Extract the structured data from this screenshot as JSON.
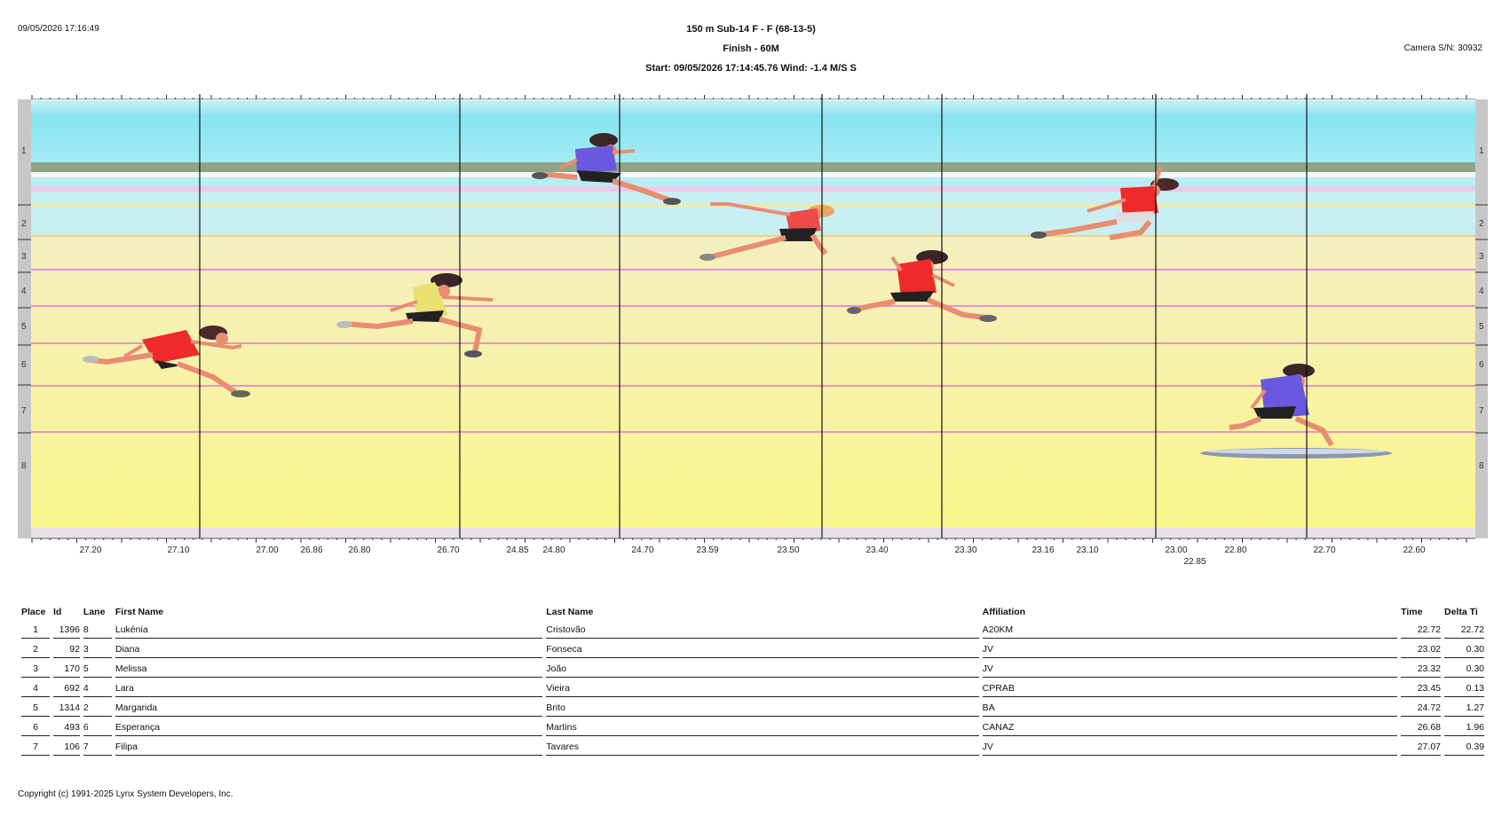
{
  "header": {
    "datetime": "09/05/2026 17:16:49",
    "event": "150 m  Sub-14 F - F (68-13-5)",
    "finish": "Finish - 60M",
    "start": "Start: 09/05/2026 17:14:45.76    Wind: -1.4 M/S S",
    "camera": "Camera S/N: 30932"
  },
  "photo": {
    "lanes": [
      "1",
      "2",
      "3",
      "4",
      "5",
      "6",
      "7",
      "8"
    ],
    "colors": {
      "sky": "#8ee6f2",
      "track_top": "#f4eeb8",
      "track_bottom": "#fbf58a",
      "lane_line": "#e09ad8",
      "grass": "#8fa487",
      "red_kit": "#ee2a2a",
      "blue_kit": "#6a58e0",
      "skin": "#e88d72",
      "hair": "#4a2a2a"
    },
    "time_ticks": [
      {
        "label": "27.20",
        "row": 0
      },
      {
        "label": "27.10",
        "row": 0
      },
      {
        "label": "27.00",
        "row": 0
      },
      {
        "label": "26.86",
        "row": 0
      },
      {
        "label": "26.80",
        "row": 0
      },
      {
        "label": "26.70",
        "row": 0
      },
      {
        "label": "24.85",
        "row": 0
      },
      {
        "label": "24.80",
        "row": 0
      },
      {
        "label": "24.70",
        "row": 0
      },
      {
        "label": "23.59",
        "row": 0
      },
      {
        "label": "23.50",
        "row": 0
      },
      {
        "label": "23.40",
        "row": 0
      },
      {
        "label": "23.30",
        "row": 0
      },
      {
        "label": "23.16",
        "row": 0
      },
      {
        "label": "23.10",
        "row": 0
      },
      {
        "label": "23.00",
        "row": 0
      },
      {
        "label": "22.85",
        "row": 1
      },
      {
        "label": "22.80",
        "row": 0
      },
      {
        "label": "22.70",
        "row": 0
      },
      {
        "label": "22.60",
        "row": 0
      }
    ]
  },
  "table": {
    "headers": {
      "place": "Place",
      "id": "Id",
      "lane": "Lane",
      "first": "First Name",
      "last": "Last Name",
      "affiliation": "Affiliation",
      "time": "Time",
      "delta": "Delta Ti"
    },
    "rows": [
      {
        "place": "1",
        "id": "1396",
        "lane": "8",
        "first": "Lukénia",
        "last": "Cristovão",
        "affiliation": "A20KM",
        "time": "22.72",
        "delta": "22.72"
      },
      {
        "place": "2",
        "id": "92",
        "lane": "3",
        "first": "Diana",
        "last": "Fonseca",
        "affiliation": "JV",
        "time": "23.02",
        "delta": "0.30"
      },
      {
        "place": "3",
        "id": "170",
        "lane": "5",
        "first": "Melissa",
        "last": "João",
        "affiliation": "JV",
        "time": "23.32",
        "delta": "0.30"
      },
      {
        "place": "4",
        "id": "692",
        "lane": "4",
        "first": "Lara",
        "last": "Vieira",
        "affiliation": "CPRAB",
        "time": "23.45",
        "delta": "0.13"
      },
      {
        "place": "5",
        "id": "1314",
        "lane": "2",
        "first": "Margarida",
        "last": "Brito",
        "affiliation": "BA",
        "time": "24.72",
        "delta": "1.27"
      },
      {
        "place": "6",
        "id": "493",
        "lane": "6",
        "first": "Esperança",
        "last": "Martins",
        "affiliation": "CANAZ",
        "time": "26.68",
        "delta": "1.96"
      },
      {
        "place": "7",
        "id": "106",
        "lane": "7",
        "first": "Filipa",
        "last": "Tavares",
        "affiliation": "JV",
        "time": "27.07",
        "delta": "0.39"
      }
    ]
  },
  "footer": {
    "copyright": "Copyright (c) 1991-2025 Lynx System Developers, Inc."
  }
}
